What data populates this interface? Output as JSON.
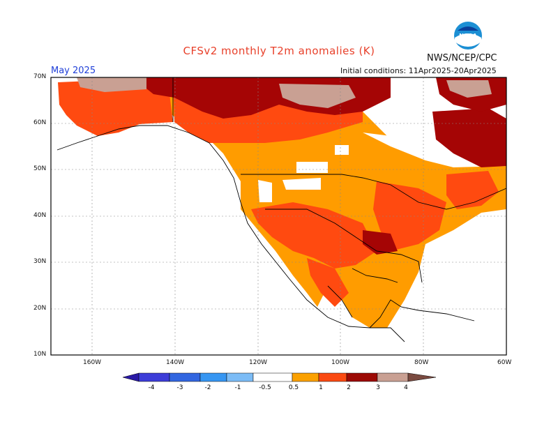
{
  "title": "CFSv2 monthly T2m anomalies (K)",
  "agency": "NWS/NCEP/CPC",
  "logo_text": "NOAA",
  "month": "May 2025",
  "initial_conditions": "Initial conditions: 11Apr2025-20Apr2025",
  "lat_labels": [
    "70N",
    "60N",
    "50N",
    "40N",
    "30N",
    "20N",
    "10N"
  ],
  "lon_labels": [
    "160W",
    "140W",
    "120W",
    "100W",
    "80W",
    "60W"
  ],
  "legend": {
    "colors": [
      "#2a19a6",
      "#3d3dd8",
      "#3266e0",
      "#3696f2",
      "#7cbcf6",
      "#ffffff",
      "#fba100",
      "#fa4a12",
      "#e81e05",
      "#9c0a05",
      "#c9a093",
      "#7a4a40"
    ],
    "labels": [
      "-4",
      "-3",
      "-2",
      "-1",
      "-0.5",
      "0.5",
      "1",
      "2",
      "3",
      "4"
    ]
  },
  "colors": {
    "anom_05_1": "#ff9c00",
    "anom_1_2": "#ff4a10",
    "anom_2_3": "#a50505",
    "anom_3_4": "#c9a093"
  }
}
